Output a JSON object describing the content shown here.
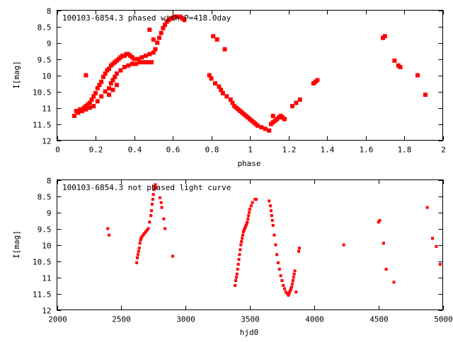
{
  "chart_data": [
    {
      "type": "scatter",
      "title": "100103-6854.3 phased with P=418.0day",
      "xlabel": "phase",
      "ylabel": "I[mag]",
      "xlim": [
        0,
        2
      ],
      "ylim": [
        12,
        8
      ],
      "y_reversed": true,
      "xticks": [
        0,
        0.2,
        0.4,
        0.6,
        0.8,
        1,
        1.2,
        1.4,
        1.6,
        1.8,
        2
      ],
      "xtick_labels": [
        "0",
        "0.2",
        "0.4",
        "0.6",
        "0.8",
        "1",
        "1.2",
        "1.4",
        "1.6",
        "1.8",
        "2"
      ],
      "yticks": [
        8,
        8.5,
        9,
        9.5,
        10,
        10.5,
        11,
        11.5,
        12
      ],
      "ytick_labels": [
        "8",
        "8.5",
        "9",
        "9.5",
        "10",
        "10.5",
        "11",
        "11.5",
        "12"
      ],
      "grid": false,
      "marker": "filled square",
      "color": "#ff0000",
      "x": [
        0.09,
        0.1,
        0.11,
        0.12,
        0.13,
        0.14,
        0.15,
        0.16,
        0.17,
        0.18,
        0.19,
        0.2,
        0.21,
        0.22,
        0.23,
        0.24,
        0.25,
        0.26,
        0.27,
        0.28,
        0.29,
        0.3,
        0.31,
        0.32,
        0.33,
        0.34,
        0.35,
        0.36,
        0.37,
        0.38,
        0.39,
        0.4,
        0.42,
        0.44,
        0.46,
        0.48,
        0.5,
        0.51,
        0.52,
        0.53,
        0.54,
        0.55,
        0.56,
        0.57,
        0.58,
        0.59,
        0.6,
        0.61,
        0.62,
        0.63,
        0.64,
        0.65,
        0.66,
        0.11,
        0.13,
        0.15,
        0.17,
        0.19,
        0.21,
        0.23,
        0.25,
        0.27,
        0.28,
        0.29,
        0.3,
        0.31,
        0.33,
        0.35,
        0.37,
        0.39,
        0.41,
        0.43,
        0.45,
        0.47,
        0.49,
        0.15,
        0.27,
        0.29,
        0.31,
        0.48,
        0.5,
        0.79,
        0.8,
        0.82,
        0.84,
        0.85,
        0.86,
        0.88,
        0.9,
        0.91,
        0.92,
        0.93,
        0.94,
        0.95,
        0.96,
        0.97,
        0.98,
        0.99,
        1.0,
        1.01,
        1.02,
        1.03,
        1.04,
        1.06,
        1.08,
        1.1,
        1.11,
        1.12,
        1.13,
        1.14,
        1.15,
        1.16,
        1.17,
        1.18,
        1.12,
        1.14,
        1.16,
        1.22,
        1.24,
        1.26,
        0.81,
        0.83,
        0.87,
        1.33,
        1.34,
        1.35,
        1.69,
        1.7,
        1.75,
        1.77,
        1.78,
        1.87,
        1.91
      ],
      "y": [
        11.25,
        11.1,
        11.15,
        11.05,
        11.1,
        11.0,
        10.95,
        10.9,
        10.85,
        10.75,
        10.65,
        10.55,
        10.4,
        10.3,
        10.2,
        10.05,
        9.95,
        9.85,
        9.8,
        9.7,
        9.65,
        9.6,
        9.55,
        9.5,
        9.45,
        9.4,
        9.4,
        9.35,
        9.35,
        9.4,
        9.45,
        9.5,
        9.5,
        9.45,
        9.4,
        9.35,
        9.3,
        9.2,
        9.0,
        8.85,
        8.7,
        8.55,
        8.45,
        8.35,
        8.3,
        8.25,
        8.25,
        8.2,
        8.2,
        8.2,
        8.2,
        8.25,
        8.3,
        11.15,
        11.1,
        11.05,
        11.0,
        10.95,
        10.8,
        10.65,
        10.5,
        10.4,
        10.25,
        10.15,
        10.05,
        9.95,
        9.85,
        9.75,
        9.7,
        9.65,
        9.65,
        9.6,
        9.6,
        9.6,
        9.6,
        10.0,
        10.6,
        10.45,
        10.3,
        8.6,
        8.9,
        10.0,
        10.1,
        10.25,
        10.35,
        10.45,
        10.55,
        10.65,
        10.75,
        10.85,
        10.95,
        11.0,
        11.05,
        11.1,
        11.15,
        11.2,
        11.25,
        11.3,
        11.35,
        11.4,
        11.45,
        11.5,
        11.55,
        11.6,
        11.65,
        11.7,
        11.5,
        11.45,
        11.4,
        11.35,
        11.3,
        11.25,
        11.3,
        11.35,
        11.25,
        11.35,
        11.25,
        10.95,
        10.85,
        10.75,
        8.8,
        8.9,
        9.2,
        10.25,
        10.2,
        10.15,
        8.85,
        8.8,
        9.55,
        9.7,
        9.75,
        10.0,
        10.6
      ]
    },
    {
      "type": "scatter",
      "title": "100103-6854.3 not phased light curve",
      "xlabel": "hjd0",
      "ylabel": "I[mag]",
      "xlim": [
        2000,
        5000
      ],
      "ylim": [
        12,
        8
      ],
      "y_reversed": true,
      "xticks": [
        2000,
        2500,
        3000,
        3500,
        4000,
        4500,
        5000
      ],
      "xtick_labels": [
        "2000",
        "2500",
        "3000",
        "3500",
        "4000",
        "4500",
        "5000"
      ],
      "yticks": [
        8,
        8.5,
        9,
        9.5,
        10,
        10.5,
        11,
        11.5,
        12
      ],
      "ytick_labels": [
        "8",
        "8.5",
        "9",
        "9.5",
        "10",
        "10.5",
        "11",
        "11.5",
        "12"
      ],
      "grid": false,
      "marker": "small filled square",
      "color": "#ff0000",
      "x": [
        2395,
        2405,
        2620,
        2625,
        2630,
        2635,
        2640,
        2645,
        2650,
        2655,
        2660,
        2670,
        2680,
        2690,
        2700,
        2710,
        2720,
        2730,
        2735,
        2740,
        2745,
        2750,
        2755,
        2760,
        2765,
        2770,
        2800,
        2810,
        2815,
        2830,
        2840,
        2900,
        3385,
        3390,
        3395,
        3400,
        3405,
        3410,
        3415,
        3420,
        3425,
        3430,
        3435,
        3440,
        3445,
        3450,
        3455,
        3460,
        3465,
        3470,
        3475,
        3480,
        3485,
        3490,
        3495,
        3500,
        3510,
        3520,
        3540,
        3550,
        3650,
        3660,
        3665,
        3670,
        3675,
        3680,
        3690,
        3700,
        3710,
        3720,
        3730,
        3740,
        3750,
        3760,
        3770,
        3780,
        3790,
        3800,
        3805,
        3810,
        3815,
        3820,
        3825,
        3830,
        3835,
        3840,
        3845,
        3850,
        3860,
        3880,
        3885,
        4230,
        4500,
        4510,
        4540,
        4560,
        4620,
        4880,
        4920,
        4950,
        4980
      ],
      "y": [
        9.5,
        9.7,
        10.55,
        10.4,
        10.3,
        10.2,
        10.1,
        9.95,
        9.85,
        9.8,
        9.75,
        9.7,
        9.65,
        9.6,
        9.55,
        9.5,
        9.3,
        9.1,
        8.95,
        8.75,
        8.6,
        8.45,
        8.3,
        8.2,
        8.15,
        8.25,
        8.55,
        8.7,
        8.85,
        9.2,
        9.5,
        10.35,
        11.25,
        11.1,
        11.0,
        10.9,
        10.75,
        10.6,
        10.45,
        10.3,
        10.15,
        10.0,
        9.9,
        9.8,
        9.7,
        9.6,
        9.55,
        9.5,
        9.45,
        9.4,
        9.35,
        9.3,
        9.2,
        9.1,
        9.0,
        8.9,
        8.8,
        8.7,
        8.6,
        8.6,
        8.65,
        8.8,
        8.95,
        9.1,
        9.25,
        9.4,
        9.7,
        10.0,
        10.3,
        10.55,
        10.75,
        10.95,
        11.1,
        11.25,
        11.35,
        11.45,
        11.5,
        11.55,
        11.5,
        11.45,
        11.4,
        11.35,
        11.3,
        11.2,
        11.1,
        11.0,
        10.9,
        10.8,
        11.45,
        10.2,
        10.1,
        10.0,
        9.3,
        9.25,
        9.95,
        10.75,
        11.15,
        8.85,
        9.8,
        10.05,
        10.6
      ]
    }
  ]
}
